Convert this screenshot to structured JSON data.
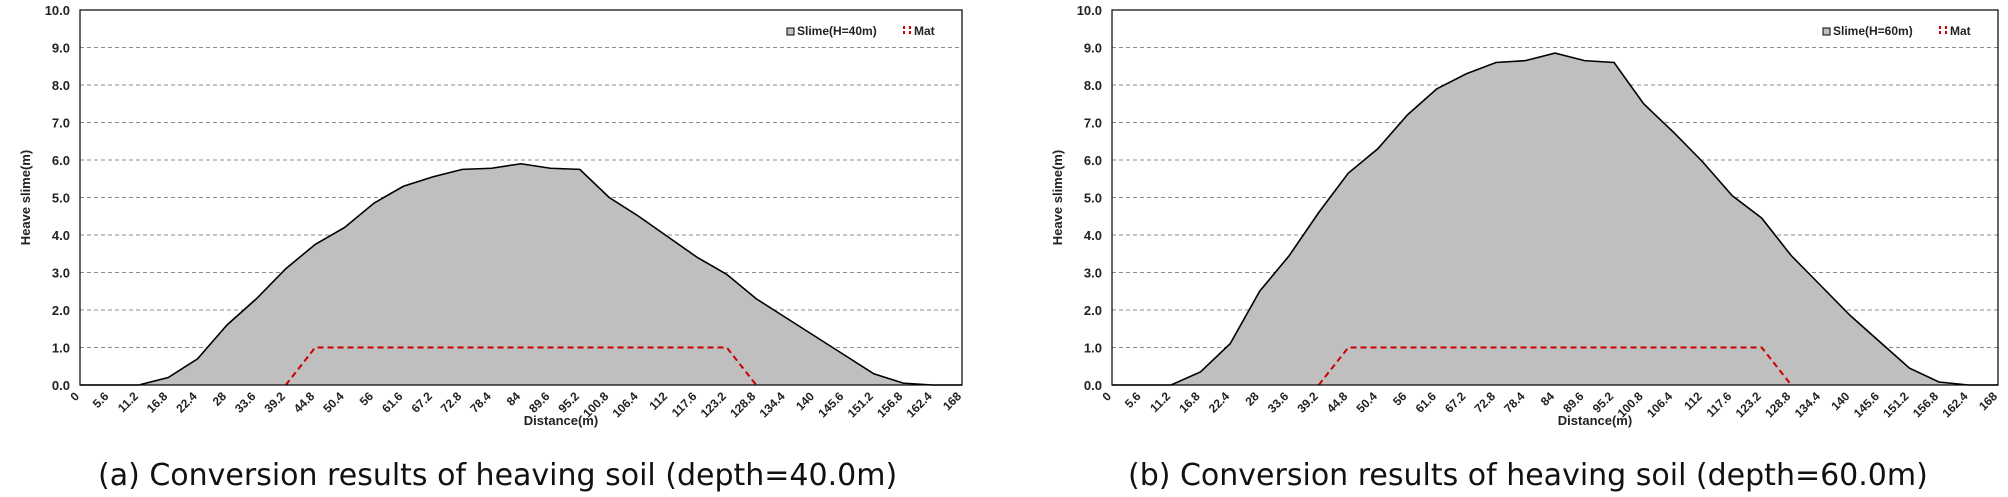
{
  "chart_data": [
    {
      "type": "area",
      "panel": "a",
      "caption": "(a) Conversion results of heaving soil (depth=40.0m)",
      "xlabel": "Distance(m)",
      "ylabel": "Heave slime(m)",
      "xlim": [
        0,
        168
      ],
      "ylim": [
        0,
        10
      ],
      "grid": true,
      "legend_position": "top-right",
      "x_ticks": [
        "0",
        "5.6",
        "11.2",
        "16.8",
        "22.4",
        "28",
        "33.6",
        "39.2",
        "44.8",
        "50.4",
        "56",
        "61.6",
        "67.2",
        "72.8",
        "78.4",
        "84",
        "89.6",
        "95.2",
        "100.8",
        "106.4",
        "112",
        "117.6",
        "123.2",
        "128.8",
        "134.4",
        "140",
        "145.6",
        "151.2",
        "156.8",
        "162.4",
        "168"
      ],
      "y_ticks": [
        "0.0",
        "1.0",
        "2.0",
        "3.0",
        "4.0",
        "5.0",
        "6.0",
        "7.0",
        "8.0",
        "9.0",
        "10.0"
      ],
      "series": [
        {
          "name": "Slime(H=40m)",
          "kind": "area",
          "color": "#bfbfbf",
          "x": [
            0,
            5.6,
            11.2,
            16.8,
            22.4,
            28,
            33.6,
            39.2,
            44.8,
            50.4,
            56,
            61.6,
            67.2,
            72.8,
            78.4,
            84,
            89.6,
            95.2,
            100.8,
            106.4,
            112,
            117.6,
            123.2,
            128.8,
            134.4,
            140,
            145.6,
            151.2,
            156.8,
            162.4,
            168
          ],
          "values": [
            0,
            0,
            0,
            0.2,
            0.7,
            1.6,
            2.3,
            3.1,
            3.75,
            4.2,
            4.85,
            5.3,
            5.55,
            5.75,
            5.78,
            5.9,
            5.78,
            5.75,
            5.0,
            4.5,
            3.95,
            3.4,
            2.95,
            2.3,
            1.8,
            1.3,
            0.8,
            0.3,
            0.05,
            0,
            0
          ]
        },
        {
          "name": "Mat",
          "kind": "line",
          "color": "#cc0000",
          "x": [
            39.2,
            44.8,
            123.2,
            128.8
          ],
          "values": [
            0,
            1.0,
            1.0,
            0
          ]
        }
      ]
    },
    {
      "type": "area",
      "panel": "b",
      "caption": "(b) Conversion results of heaving soil (depth=60.0m)",
      "xlabel": "Distance(m)",
      "ylabel": "Heave slime(m)",
      "xlim": [
        0,
        168
      ],
      "ylim": [
        0,
        10
      ],
      "grid": true,
      "legend_position": "top-right",
      "x_ticks": [
        "0",
        "5.6",
        "11.2",
        "16.8",
        "22.4",
        "28",
        "33.6",
        "39.2",
        "44.8",
        "50.4",
        "56",
        "61.6",
        "67.2",
        "72.8",
        "78.4",
        "84",
        "89.6",
        "95.2",
        "100.8",
        "106.4",
        "112",
        "117.6",
        "123.2",
        "128.8",
        "134.4",
        "140",
        "145.6",
        "151.2",
        "156.8",
        "162.4",
        "168"
      ],
      "y_ticks": [
        "0.0",
        "1.0",
        "2.0",
        "3.0",
        "4.0",
        "5.0",
        "6.0",
        "7.0",
        "8.0",
        "9.0",
        "10.0"
      ],
      "series": [
        {
          "name": "Slime(H=60m)",
          "kind": "area",
          "color": "#bfbfbf",
          "x": [
            0,
            5.6,
            11.2,
            16.8,
            22.4,
            28,
            33.6,
            39.2,
            44.8,
            50.4,
            56,
            61.6,
            67.2,
            72.8,
            78.4,
            84,
            89.6,
            95.2,
            100.8,
            106.4,
            112,
            117.6,
            123.2,
            128.8,
            134.4,
            140,
            145.6,
            151.2,
            156.8,
            162.4,
            168
          ],
          "values": [
            0,
            0,
            0,
            0.35,
            1.1,
            2.5,
            3.45,
            4.6,
            5.65,
            6.3,
            7.2,
            7.9,
            8.3,
            8.6,
            8.65,
            8.85,
            8.65,
            8.6,
            7.5,
            6.75,
            5.95,
            5.05,
            4.45,
            3.45,
            2.65,
            1.85,
            1.15,
            0.45,
            0.08,
            0,
            0
          ]
        },
        {
          "name": "Mat",
          "kind": "line",
          "color": "#cc0000",
          "x": [
            39.2,
            44.8,
            123.2,
            128.8
          ],
          "values": [
            0,
            1.0,
            1.0,
            0
          ]
        }
      ]
    }
  ]
}
